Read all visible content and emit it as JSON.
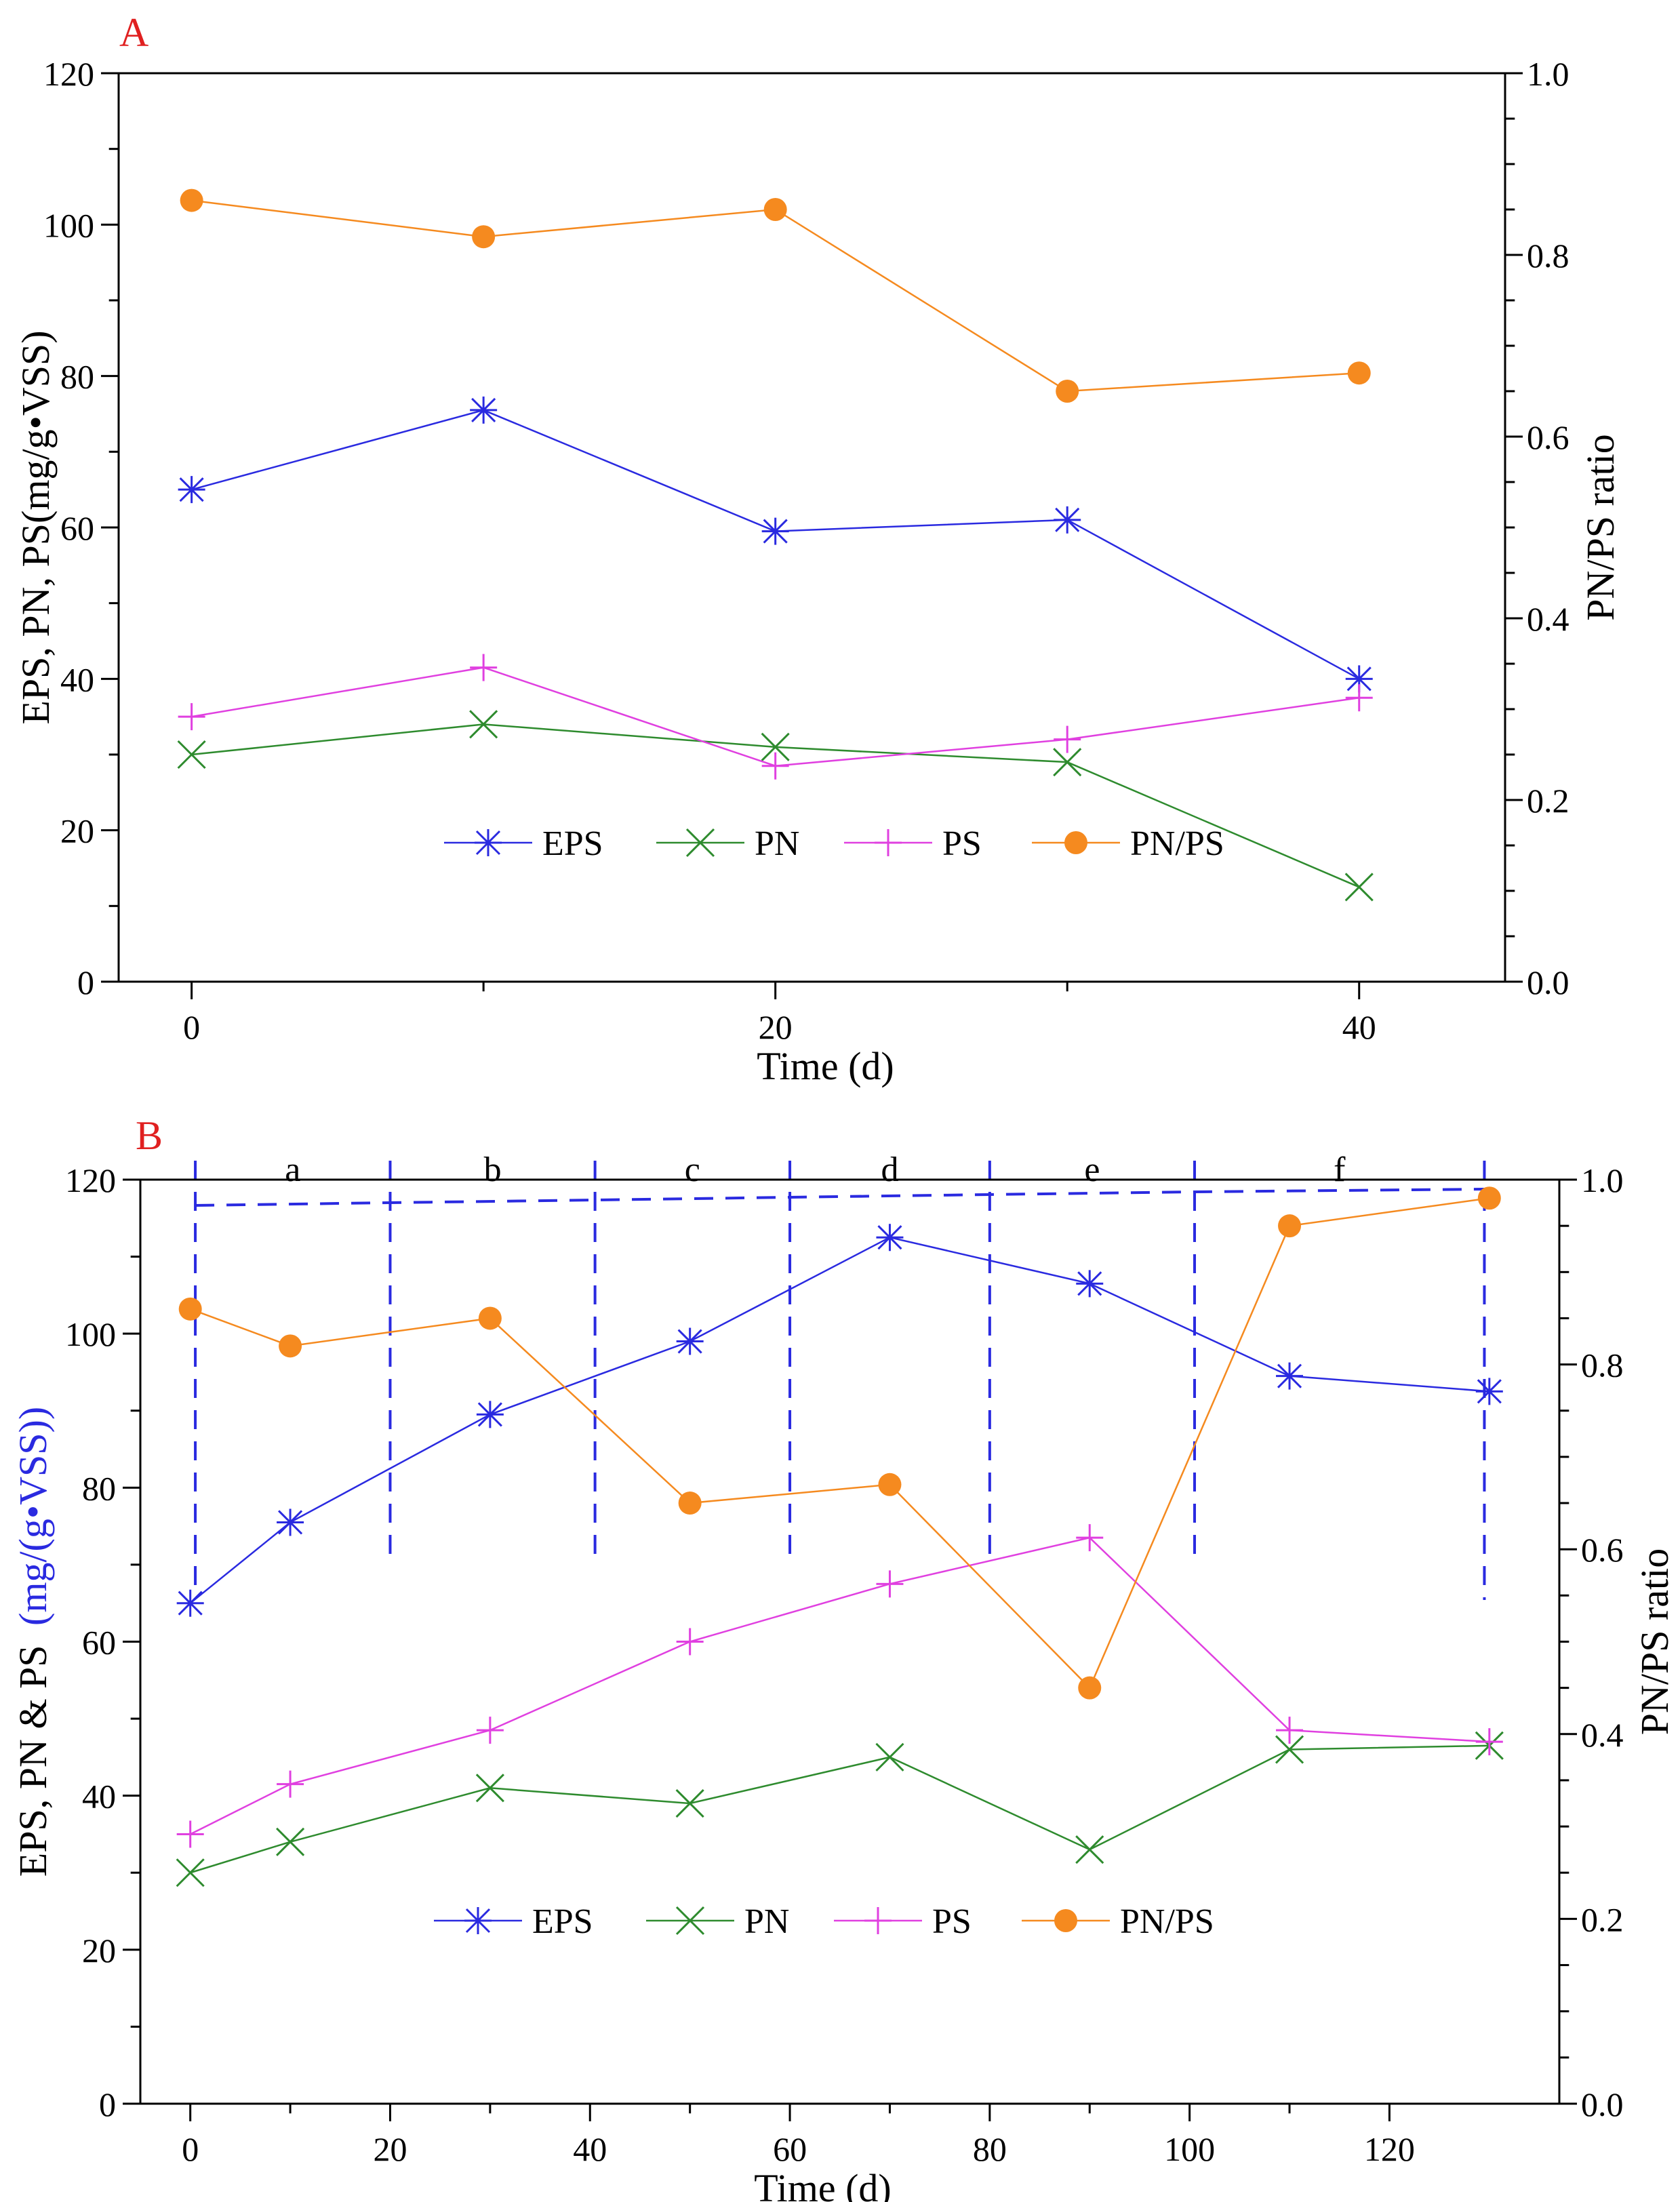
{
  "chart_data": [
    {
      "panel_label": "A",
      "type": "line",
      "x": [
        0,
        10,
        20,
        30,
        40
      ],
      "xlabel": "Time (d)",
      "ylabel": "EPS, PN, PS(mg/g•VSS)",
      "y2label": "PN/PS ratio",
      "xlim": [
        -2.5,
        45
      ],
      "ylim": [
        0,
        120
      ],
      "y2lim": [
        0,
        1
      ],
      "xticks": [
        0,
        20,
        40
      ],
      "xtick_labels": [
        "0",
        "20",
        "40"
      ],
      "yticks": [
        0,
        20,
        40,
        60,
        80,
        100,
        120
      ],
      "ytick_labels": [
        "0",
        "20",
        "40",
        "60",
        "80",
        "100",
        "120"
      ],
      "y2ticks": [
        0,
        0.2,
        0.4,
        0.6,
        0.8,
        1.0
      ],
      "y2tick_labels": [
        "0.0",
        "0.2",
        "0.4",
        "0.6",
        "0.8",
        "1.0"
      ],
      "legend_position": "lower-center",
      "series": [
        {
          "name": "EPS",
          "axis": "left",
          "color": "#2a2ae0",
          "marker": "asterisk",
          "values": [
            65,
            75.5,
            59.5,
            61,
            40
          ]
        },
        {
          "name": "PN",
          "axis": "left",
          "color": "#2e8b2e",
          "marker": "x",
          "values": [
            30,
            34,
            31,
            29,
            12.5
          ]
        },
        {
          "name": "PS",
          "axis": "left",
          "color": "#e040e0",
          "marker": "plus",
          "values": [
            35,
            41.5,
            28.5,
            32,
            37.5
          ]
        },
        {
          "name": "PN/PS",
          "axis": "right",
          "color": "#f58a1f",
          "marker": "circle",
          "values": [
            0.86,
            0.82,
            0.85,
            0.65,
            0.67
          ]
        }
      ]
    },
    {
      "panel_label": "B",
      "type": "line",
      "x": [
        0,
        10,
        30,
        50,
        70,
        90,
        110,
        130
      ],
      "xlabel": "Time (d)",
      "ylabel_main": "EPS, PN & PS",
      "ylabel_unit": "(mg/(g•VSS))",
      "y2label": "PN/PS ratio",
      "xlim": [
        -5,
        137
      ],
      "ylim": [
        0,
        120
      ],
      "y2lim": [
        0,
        1
      ],
      "xticks": [
        0,
        20,
        40,
        60,
        80,
        100,
        120
      ],
      "xtick_labels": [
        "0",
        "20",
        "40",
        "60",
        "80",
        "100",
        "120"
      ],
      "yticks": [
        0,
        20,
        40,
        60,
        80,
        100,
        120
      ],
      "ytick_labels": [
        "0",
        "20",
        "40",
        "60",
        "80",
        "100",
        "120"
      ],
      "y2ticks": [
        0,
        0.2,
        0.4,
        0.6,
        0.8,
        1.0
      ],
      "y2tick_labels": [
        "0.0",
        "0.2",
        "0.4",
        "0.6",
        "0.8",
        "1.0"
      ],
      "legend_position": "lower-center",
      "phase_boundaries": [
        0.5,
        20,
        40.5,
        60,
        80,
        100.5,
        129.5
      ],
      "phase_labels": [
        "a",
        "b",
        "c",
        "d",
        "e",
        "f"
      ],
      "series": [
        {
          "name": "EPS",
          "axis": "left",
          "color": "#2a2ae0",
          "marker": "asterisk",
          "values": [
            65,
            75.5,
            89.5,
            99,
            112.5,
            106.5,
            94.5,
            92.5
          ]
        },
        {
          "name": "PN",
          "axis": "left",
          "color": "#2e8b2e",
          "marker": "x",
          "values": [
            30,
            34,
            41,
            39,
            45,
            33,
            46,
            46.5
          ]
        },
        {
          "name": "PS",
          "axis": "left",
          "color": "#e040e0",
          "marker": "plus",
          "values": [
            35,
            41.5,
            48.5,
            60,
            67.5,
            73.5,
            48.5,
            47
          ]
        },
        {
          "name": "PN/PS",
          "axis": "right",
          "color": "#f58a1f",
          "marker": "circle",
          "values": [
            0.86,
            0.82,
            0.85,
            0.65,
            0.67,
            0.45,
            0.95,
            0.98
          ]
        }
      ]
    }
  ]
}
